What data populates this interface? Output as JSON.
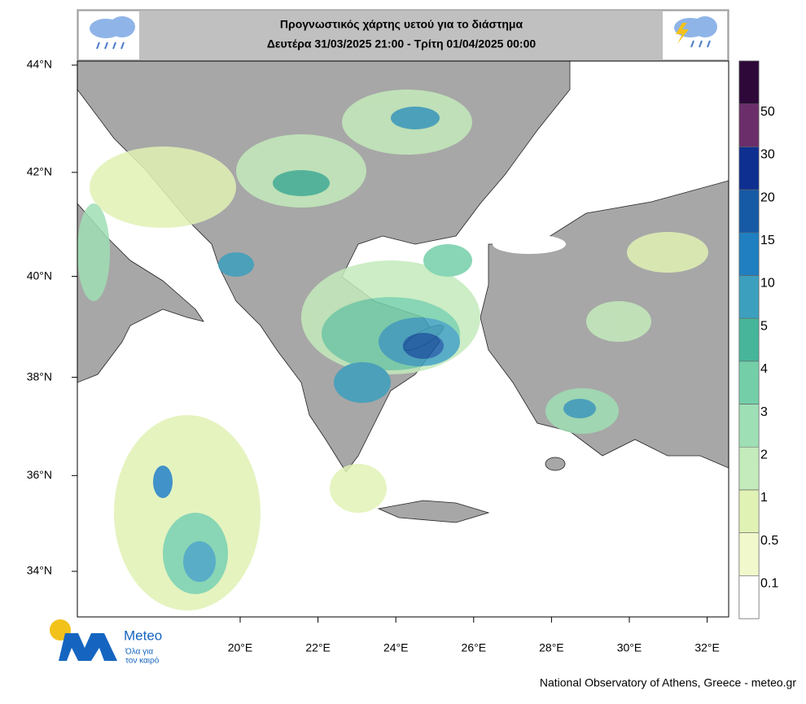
{
  "header": {
    "title_line1": "Προγνωστικός χάρτης υετού για το διάστημα",
    "title_line2": "Δευτέρα 31/03/2025 21:00 - Τρίτη 01/04/2025 00:00"
  },
  "map": {
    "lat_ticks": [
      {
        "value": 44,
        "label": "44°N"
      },
      {
        "value": 42,
        "label": "42°N"
      },
      {
        "value": 40,
        "label": "40°N"
      },
      {
        "value": 38,
        "label": "38°N"
      },
      {
        "value": 36,
        "label": "36°N"
      },
      {
        "value": 34,
        "label": "34°N"
      }
    ],
    "lon_ticks": [
      {
        "value": 20,
        "label": "20°E"
      },
      {
        "value": 22,
        "label": "22°E"
      },
      {
        "value": 24,
        "label": "24°E"
      },
      {
        "value": 26,
        "label": "26°E"
      },
      {
        "value": 28,
        "label": "28°E"
      },
      {
        "value": 30,
        "label": "30°E"
      },
      {
        "value": 32,
        "label": "32°E"
      }
    ]
  },
  "legend": {
    "levels": [
      0.1,
      0.5,
      1,
      2,
      3,
      4,
      5,
      10,
      15,
      20,
      30,
      50
    ],
    "colors": [
      "#ffffff",
      "#f1f8cc",
      "#e1f2b5",
      "#c4ebbb",
      "#9fdfb5",
      "#74cfa9",
      "#46b59a",
      "#3d9fbe",
      "#1f7fc0",
      "#1659a5",
      "#0e2f8f",
      "#6b2e6a",
      "#2d0838"
    ]
  },
  "logo": {
    "name": "Meteo",
    "tagline_1": "Όλα για",
    "tagline_2": "τον καιρό"
  },
  "footer": "National Observatory of Athens, Greece - meteo.gr"
}
